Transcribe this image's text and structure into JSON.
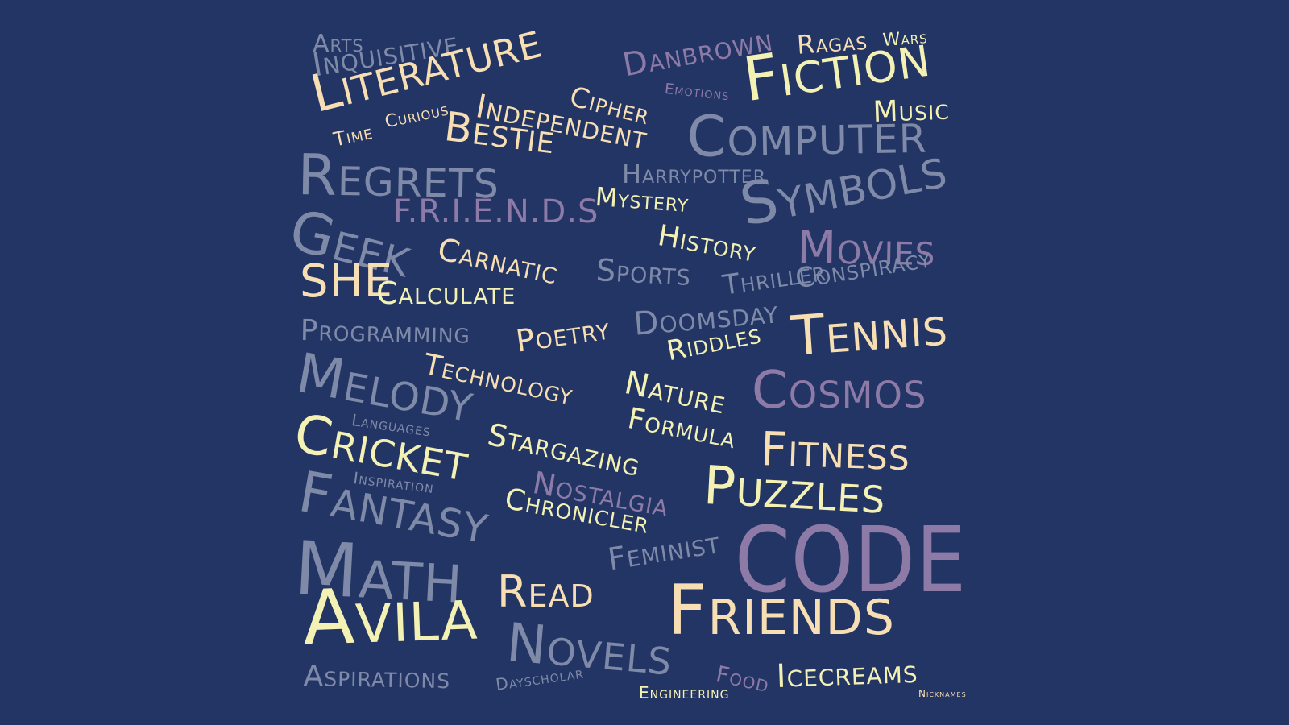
{
  "palette": {
    "background": "#233565",
    "yellow": "#f4f1b4",
    "cream": "#f7dfb3",
    "gray": "#7f8aa8",
    "purple": "#8d7aa6"
  },
  "words": [
    {
      "id": "arts",
      "text": "Arts",
      "color": "#7f8aa8"
    },
    {
      "id": "inquisitive",
      "text": "Inquisitive",
      "color": "#7f8aa8"
    },
    {
      "id": "literature",
      "text": "Literature",
      "color": "#f7dfb3"
    },
    {
      "id": "danbrown",
      "text": "Danbrown",
      "color": "#8d7aa6"
    },
    {
      "id": "ragas",
      "text": "Ragas",
      "color": "#f7dfb3"
    },
    {
      "id": "wars",
      "text": "Wars",
      "color": "#f4f1b4"
    },
    {
      "id": "fiction",
      "text": "Fiction",
      "color": "#f4f1b4"
    },
    {
      "id": "emotions",
      "text": "Emotions",
      "color": "#8d7aa6"
    },
    {
      "id": "music",
      "text": "Music",
      "color": "#f4f1b4"
    },
    {
      "id": "cipher",
      "text": "Cipher",
      "color": "#f7dfb3"
    },
    {
      "id": "independent",
      "text": "Independent",
      "color": "#f7dfb3"
    },
    {
      "id": "time",
      "text": "Time",
      "color": "#f7dfb3"
    },
    {
      "id": "curious",
      "text": "Curious",
      "color": "#f7dfb3"
    },
    {
      "id": "bestie",
      "text": "Bestie",
      "color": "#f7dfb3"
    },
    {
      "id": "computer",
      "text": "Computer",
      "color": "#7f8aa8"
    },
    {
      "id": "regrets",
      "text": "Regrets",
      "color": "#7f8aa8"
    },
    {
      "id": "harrypotter",
      "text": "Harrypotter",
      "color": "#7f8aa8"
    },
    {
      "id": "friends-dots",
      "text": "F.R.I.E.N.D.S",
      "color": "#8d7aa6"
    },
    {
      "id": "mystery",
      "text": "Mystery",
      "color": "#f4f1b4"
    },
    {
      "id": "symbols",
      "text": "Symbols",
      "color": "#7f8aa8"
    },
    {
      "id": "geek",
      "text": "Geek",
      "color": "#7f8aa8"
    },
    {
      "id": "carnatic",
      "text": "Carnatic",
      "color": "#f7dfb3"
    },
    {
      "id": "history",
      "text": "History",
      "color": "#f4f1b4"
    },
    {
      "id": "movies",
      "text": "Movies",
      "color": "#8d7aa6"
    },
    {
      "id": "sports",
      "text": "Sports",
      "color": "#7f8aa8"
    },
    {
      "id": "thriller",
      "text": "Thriller",
      "color": "#7f8aa8"
    },
    {
      "id": "conspiracy",
      "text": "Conspiracy",
      "color": "#7f8aa8"
    },
    {
      "id": "she",
      "text": "SHE",
      "color": "#f7dfb3"
    },
    {
      "id": "calculate",
      "text": "Calculate",
      "color": "#f4f1b4"
    },
    {
      "id": "programming",
      "text": "Programming",
      "color": "#7f8aa8"
    },
    {
      "id": "poetry",
      "text": "Poetry",
      "color": "#f7dfb3"
    },
    {
      "id": "doomsday",
      "text": "Doomsday",
      "color": "#7f8aa8"
    },
    {
      "id": "tennis",
      "text": "Tennis",
      "color": "#f7dfb3"
    },
    {
      "id": "riddles",
      "text": "Riddles",
      "color": "#f4f1b4"
    },
    {
      "id": "melody",
      "text": "Melody",
      "color": "#7f8aa8"
    },
    {
      "id": "technology",
      "text": "Technology",
      "color": "#f7dfb3"
    },
    {
      "id": "nature",
      "text": "Nature",
      "color": "#f4f1b4"
    },
    {
      "id": "cosmos",
      "text": "Cosmos",
      "color": "#8d7aa6"
    },
    {
      "id": "languages",
      "text": "Languages",
      "color": "#7f8aa8"
    },
    {
      "id": "formula",
      "text": "Formula",
      "color": "#f4f1b4"
    },
    {
      "id": "cricket",
      "text": "Cricket",
      "color": "#f4f1b4"
    },
    {
      "id": "stargazing",
      "text": "Stargazing",
      "color": "#f4f1b4"
    },
    {
      "id": "fitness",
      "text": "Fitness",
      "color": "#f7dfb3"
    },
    {
      "id": "inspiration",
      "text": "Inspiration",
      "color": "#7f8aa8"
    },
    {
      "id": "nostalgia",
      "text": "Nostalgia",
      "color": "#8d7aa6"
    },
    {
      "id": "puzzles",
      "text": "Puzzles",
      "color": "#f4f1b4"
    },
    {
      "id": "fantasy",
      "text": "Fantasy",
      "color": "#7f8aa8"
    },
    {
      "id": "chronicler",
      "text": "Chronicler",
      "color": "#f4f1b4"
    },
    {
      "id": "code",
      "text": "CODE",
      "color": "#8d7aa6"
    },
    {
      "id": "feminist",
      "text": "Feminist",
      "color": "#7f8aa8"
    },
    {
      "id": "math",
      "text": "Math",
      "color": "#7f8aa8"
    },
    {
      "id": "read",
      "text": "Read",
      "color": "#f7dfb3"
    },
    {
      "id": "avila",
      "text": "Avila",
      "color": "#f4f1b4"
    },
    {
      "id": "friends",
      "text": "Friends",
      "color": "#f7dfb3"
    },
    {
      "id": "novels",
      "text": "Novels",
      "color": "#7f8aa8"
    },
    {
      "id": "aspirations",
      "text": "Aspirations",
      "color": "#7f8aa8"
    },
    {
      "id": "dayscholar",
      "text": "Dayscholar",
      "color": "#7f8aa8"
    },
    {
      "id": "food",
      "text": "Food",
      "color": "#8d7aa6"
    },
    {
      "id": "engineering",
      "text": "Engineering",
      "color": "#f4f1b4"
    },
    {
      "id": "icecreams",
      "text": "Icecreams",
      "color": "#f4f1b4"
    },
    {
      "id": "nicknames",
      "text": "Nicknames",
      "color": "#f7dfb3"
    }
  ]
}
